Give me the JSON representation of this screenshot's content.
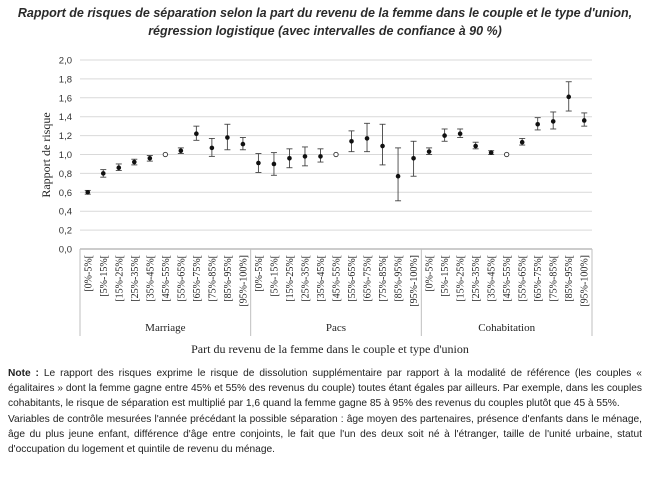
{
  "chart_data": {
    "type": "scatter",
    "title_line1": "Rapport de risques de séparation selon la part du revenu de la femme dans le couple et le type d'union,",
    "title_line2": "régression logistique (avec intervalles de confiance à 90 %)",
    "ylabel": "Rapport de risque",
    "xlabel": "Part du revenu de la femme dans le couple et type d'union",
    "ylim": [
      0,
      2.0
    ],
    "yticks": [
      "0,0",
      "0,2",
      "0,4",
      "0,6",
      "0,8",
      "1,0",
      "1,2",
      "1,4",
      "1,6",
      "1,8",
      "2,0"
    ],
    "grid": true,
    "categories": [
      "[0%-5%[",
      "[5%-15%[",
      "[15%-25%[",
      "[25%-35%[",
      "[35%-45%[",
      "[45%-55%[",
      "[55%-65%[",
      "[65%-75%[",
      "[75%-85%[",
      "[85%-95%[",
      "[95%-100%]"
    ],
    "reference_category": "[45%-55%[",
    "groups": [
      {
        "name": "Marriage",
        "values": [
          0.6,
          0.8,
          0.86,
          0.92,
          0.96,
          1.0,
          1.04,
          1.22,
          1.07,
          1.18,
          1.11
        ],
        "lower": [
          0.58,
          0.76,
          0.83,
          0.89,
          0.93,
          1.0,
          1.01,
          1.15,
          0.98,
          1.05,
          1.05
        ],
        "upper": [
          0.62,
          0.84,
          0.9,
          0.95,
          0.99,
          1.0,
          1.07,
          1.3,
          1.17,
          1.32,
          1.18
        ]
      },
      {
        "name": "Pacs",
        "values": [
          0.91,
          0.9,
          0.96,
          0.98,
          0.98,
          1.0,
          1.14,
          1.17,
          1.09,
          0.77,
          0.96
        ],
        "lower": [
          0.81,
          0.78,
          0.86,
          0.88,
          0.92,
          1.0,
          1.03,
          1.03,
          0.89,
          0.51,
          0.77
        ],
        "upper": [
          1.01,
          1.02,
          1.06,
          1.08,
          1.06,
          1.0,
          1.25,
          1.33,
          1.32,
          1.07,
          1.14
        ]
      },
      {
        "name": "Cohabitation",
        "values": [
          1.03,
          1.2,
          1.22,
          1.09,
          1.02,
          1.0,
          1.13,
          1.32,
          1.35,
          1.61,
          1.36
        ],
        "lower": [
          1.0,
          1.14,
          1.18,
          1.06,
          1.0,
          1.0,
          1.1,
          1.26,
          1.27,
          1.46,
          1.3
        ],
        "upper": [
          1.07,
          1.27,
          1.27,
          1.13,
          1.04,
          1.0,
          1.17,
          1.39,
          1.45,
          1.77,
          1.44
        ]
      }
    ]
  },
  "note": {
    "label": "Note :",
    "p1": " Le rapport des risques exprime le risque de dissolution supplémentaire par rapport à la modalité de référence (les couples « égalitaires » dont la femme gagne entre 45% et 55% des revenus du couple) toutes étant égales par ailleurs. Par exemple, dans les couples cohabitants, le risque de séparation est multiplié par 1,6 quand la femme gagne 85 à 95% des revenus du couples plutôt que 45 à 55%.",
    "p2": "Variables de contrôle mesurées l'année précédant la possible séparation : âge moyen des partenaires, présence d'enfants dans le ménage, âge du plus jeune enfant, différence d'âge entre conjoints, le fait que l'un des deux soit né à l'étranger, taille de l'unité urbaine, statut d'occupation du logement et quintile de revenu du ménage."
  }
}
